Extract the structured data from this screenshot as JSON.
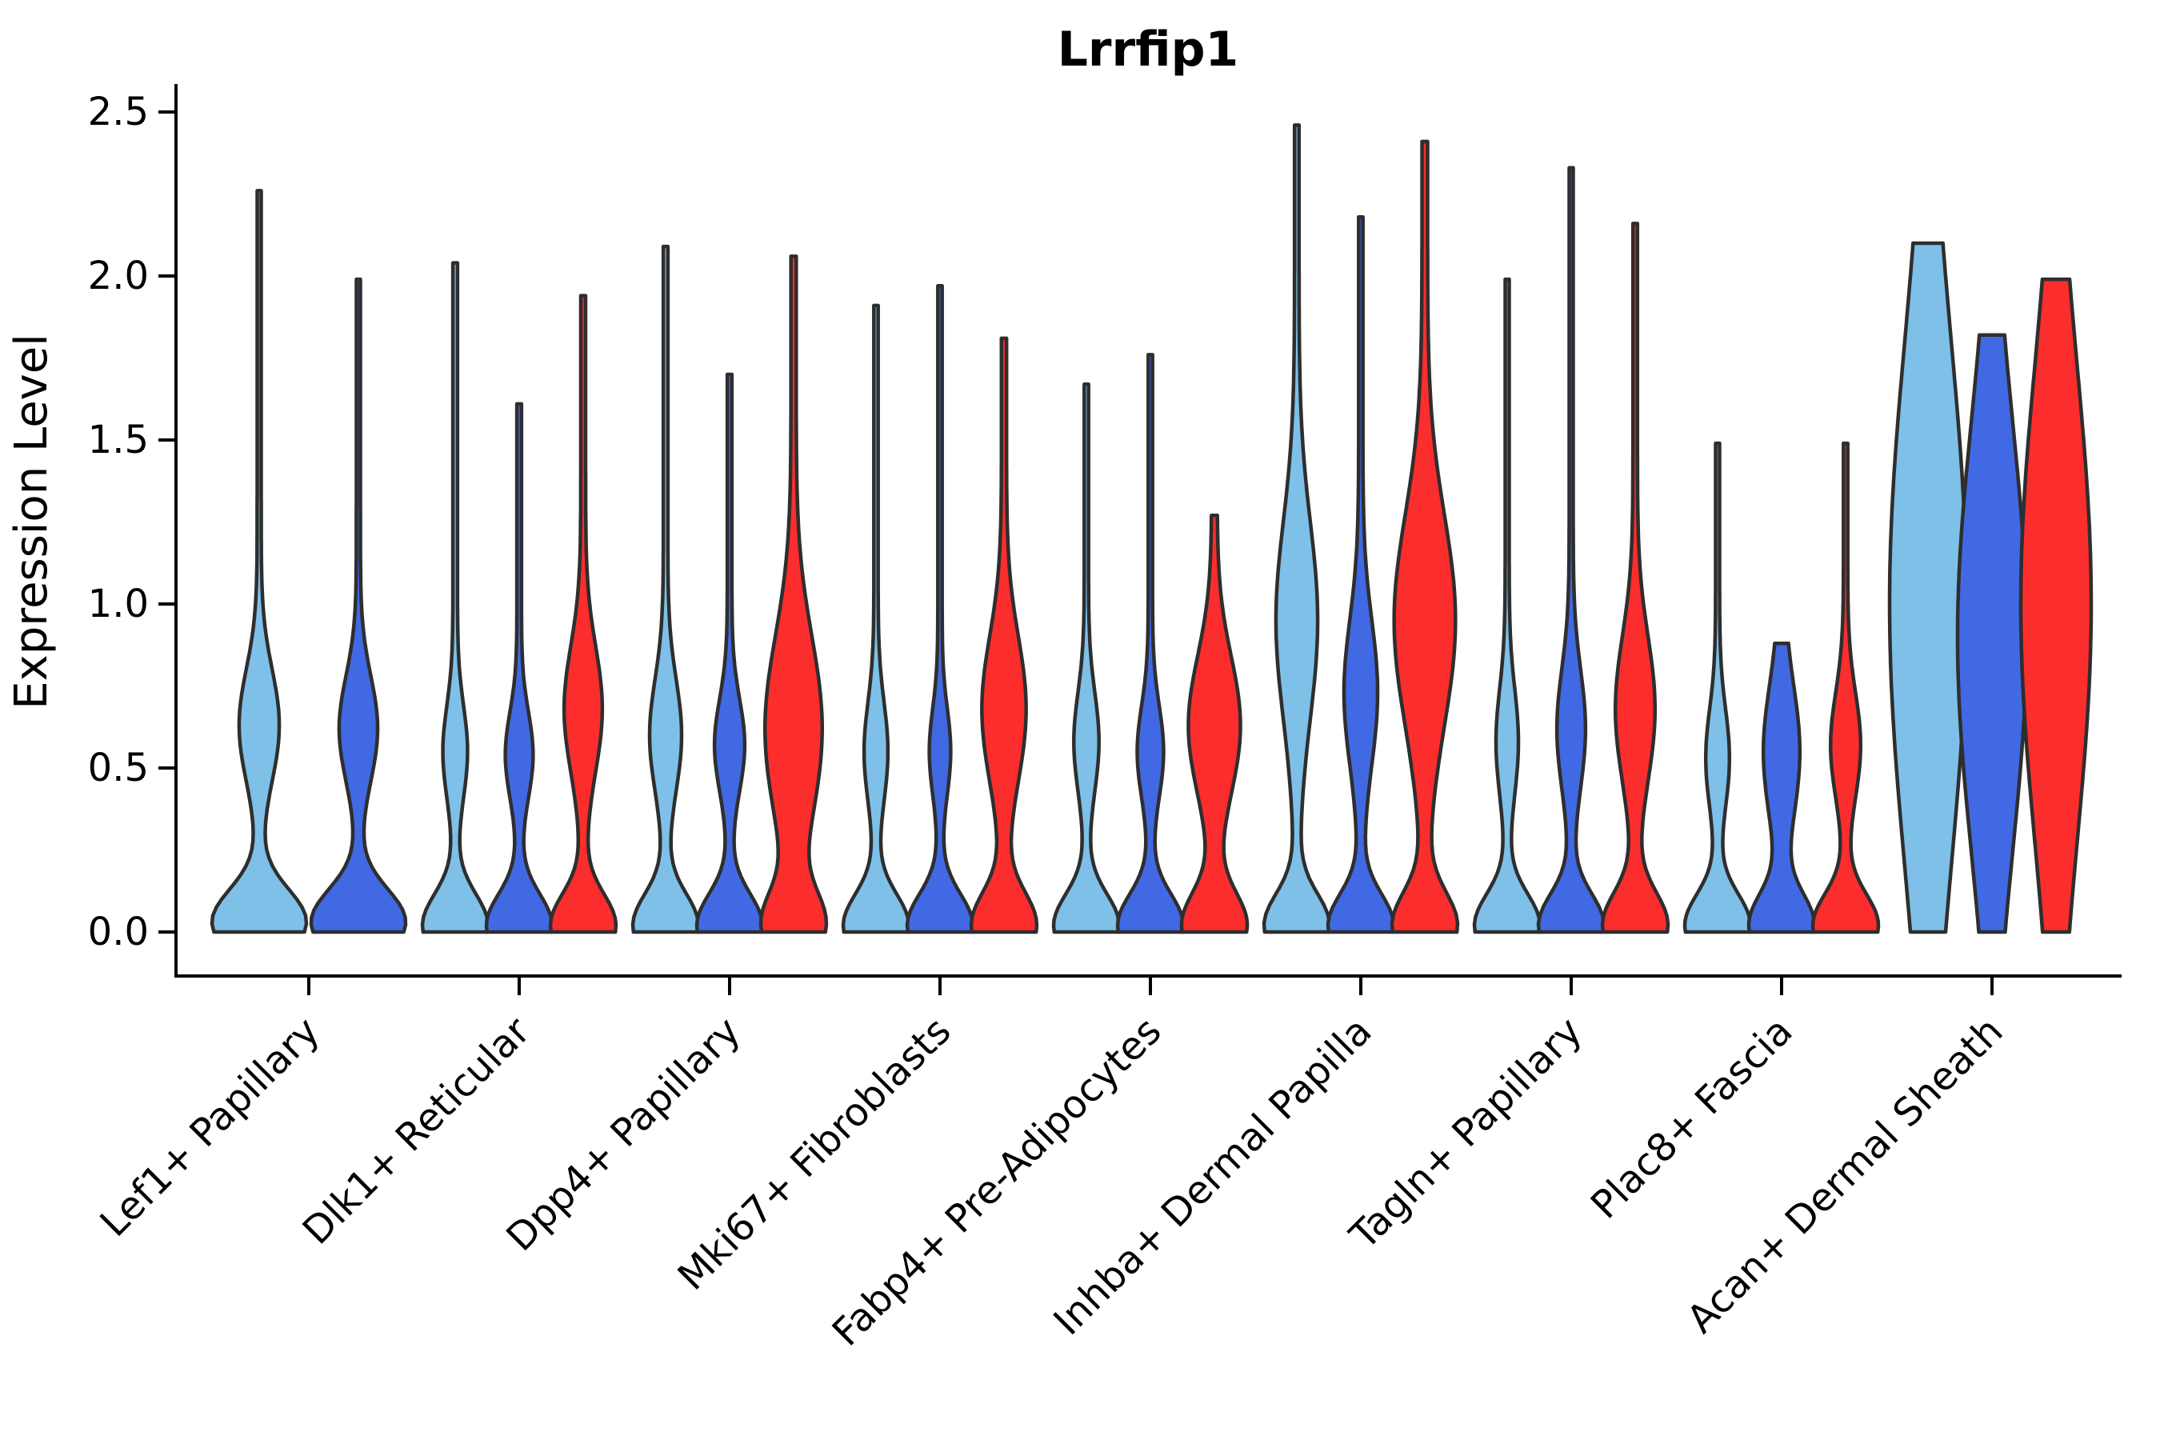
{
  "chart_data": {
    "type": "violin",
    "title": "Lrrfip1",
    "ylabel": "Expression Level",
    "xlabel": "",
    "ylim": [
      0,
      2.65
    ],
    "grid": false,
    "legend_position": "none",
    "axis_color": "#000000",
    "outline_color": "#2E2E2E",
    "hue_colors": {
      "lightblue": "#7EC0E8",
      "darkblue": "#4169E4",
      "red": "#FB2D2D"
    },
    "yticks": [
      {
        "value": 0.0,
        "label": "0.0"
      },
      {
        "value": 0.5,
        "label": "0.5"
      },
      {
        "value": 1.0,
        "label": "1.0"
      },
      {
        "value": 1.5,
        "label": "1.5"
      },
      {
        "value": 2.0,
        "label": "2.0"
      },
      {
        "value": 2.5,
        "label": "2.5"
      }
    ],
    "categories": [
      "Lef1+ Papillary",
      "Dlk1+ Reticular",
      "Dpp4+ Papillary",
      "Mki67+ Fibroblasts",
      "Fabp4+ Pre-Adipocytes",
      "Inhba+ Dermal Papilla",
      "Tagln+ Papillary",
      "Plac8+ Fascia",
      "Acan+ Dermal Sheath"
    ],
    "groups": [
      {
        "label": "Lef1+ Papillary",
        "violins": [
          {
            "hue": "lightblue",
            "max": 2.26,
            "hw": 59,
            "floor": 0.045,
            "comps": [
              [
                0.03,
                0.1,
                1.0
              ],
              [
                0.63,
                0.17,
                0.4
              ]
            ]
          },
          {
            "hue": "darkblue",
            "max": 1.99,
            "hw": 59,
            "floor": 0.045,
            "comps": [
              [
                0.03,
                0.1,
                1.0
              ],
              [
                0.62,
                0.16,
                0.38
              ]
            ]
          }
        ]
      },
      {
        "label": "Dlk1+ Reticular",
        "violins": [
          {
            "hue": "lightblue",
            "max": 2.04,
            "hw": 41,
            "floor": 0.075,
            "comps": [
              [
                0.02,
                0.095,
                1.0
              ],
              [
                0.55,
                0.14,
                0.33
              ]
            ]
          },
          {
            "hue": "darkblue",
            "max": 1.61,
            "hw": 41,
            "floor": 0.075,
            "comps": [
              [
                0.02,
                0.095,
                1.0
              ],
              [
                0.54,
                0.13,
                0.38
              ]
            ]
          },
          {
            "hue": "red",
            "max": 1.94,
            "hw": 41,
            "floor": 0.08,
            "comps": [
              [
                0.02,
                0.095,
                1.0
              ],
              [
                0.68,
                0.19,
                0.55
              ]
            ]
          }
        ]
      },
      {
        "label": "Dpp4+ Papillary",
        "violins": [
          {
            "hue": "lightblue",
            "max": 2.09,
            "hw": 41,
            "floor": 0.075,
            "comps": [
              [
                0.02,
                0.095,
                1.0
              ],
              [
                0.6,
                0.17,
                0.45
              ]
            ]
          },
          {
            "hue": "darkblue",
            "max": 1.7,
            "hw": 41,
            "floor": 0.075,
            "comps": [
              [
                0.02,
                0.095,
                1.0
              ],
              [
                0.57,
                0.14,
                0.42
              ]
            ]
          },
          {
            "hue": "red",
            "max": 2.06,
            "hw": 41,
            "floor": 0.085,
            "comps": [
              [
                0.02,
                0.1,
                0.9
              ],
              [
                0.62,
                0.28,
                0.85
              ]
            ]
          }
        ]
      },
      {
        "label": "Mki67+ Fibroblasts",
        "violins": [
          {
            "hue": "lightblue",
            "max": 1.91,
            "hw": 41,
            "floor": 0.07,
            "comps": [
              [
                0.02,
                0.095,
                1.0
              ],
              [
                0.55,
                0.15,
                0.32
              ]
            ]
          },
          {
            "hue": "darkblue",
            "max": 1.97,
            "hw": 41,
            "floor": 0.07,
            "comps": [
              [
                0.02,
                0.095,
                1.0
              ],
              [
                0.55,
                0.13,
                0.28
              ]
            ]
          },
          {
            "hue": "red",
            "max": 1.81,
            "hw": 41,
            "floor": 0.08,
            "comps": [
              [
                0.02,
                0.1,
                0.95
              ],
              [
                0.68,
                0.22,
                0.62
              ]
            ]
          }
        ]
      },
      {
        "label": "Fabp4+ Pre-Adipocytes",
        "violins": [
          {
            "hue": "lightblue",
            "max": 1.67,
            "hw": 41,
            "floor": 0.07,
            "comps": [
              [
                0.02,
                0.095,
                1.0
              ],
              [
                0.58,
                0.15,
                0.34
              ]
            ]
          },
          {
            "hue": "darkblue",
            "max": 1.76,
            "hw": 41,
            "floor": 0.07,
            "comps": [
              [
                0.02,
                0.095,
                1.0
              ],
              [
                0.55,
                0.14,
                0.36
              ]
            ]
          },
          {
            "hue": "red",
            "max": 1.27,
            "hw": 41,
            "floor": 0.085,
            "comps": [
              [
                0.02,
                0.1,
                0.92
              ],
              [
                0.63,
                0.21,
                0.72
              ]
            ]
          }
        ]
      },
      {
        "label": "Inhba+ Dermal Papilla",
        "violins": [
          {
            "hue": "lightblue",
            "max": 2.46,
            "hw": 41,
            "floor": 0.07,
            "comps": [
              [
                0.02,
                0.095,
                0.95
              ],
              [
                0.95,
                0.3,
                0.58
              ]
            ]
          },
          {
            "hue": "darkblue",
            "max": 2.18,
            "hw": 41,
            "floor": 0.07,
            "comps": [
              [
                0.02,
                0.095,
                1.0
              ],
              [
                0.73,
                0.22,
                0.48
              ]
            ]
          },
          {
            "hue": "red",
            "max": 2.41,
            "hw": 41,
            "floor": 0.08,
            "comps": [
              [
                0.02,
                0.1,
                0.85
              ],
              [
                0.95,
                0.32,
                0.8
              ]
            ]
          }
        ]
      },
      {
        "label": "Tagln+ Papillary",
        "violins": [
          {
            "hue": "lightblue",
            "max": 1.99,
            "hw": 41,
            "floor": 0.065,
            "comps": [
              [
                0.02,
                0.095,
                1.0
              ],
              [
                0.58,
                0.16,
                0.3
              ]
            ]
          },
          {
            "hue": "darkblue",
            "max": 2.33,
            "hw": 41,
            "floor": 0.065,
            "comps": [
              [
                0.02,
                0.095,
                1.0
              ],
              [
                0.62,
                0.18,
                0.4
              ]
            ]
          },
          {
            "hue": "red",
            "max": 2.16,
            "hw": 41,
            "floor": 0.07,
            "comps": [
              [
                0.02,
                0.1,
                0.95
              ],
              [
                0.68,
                0.22,
                0.55
              ]
            ]
          }
        ]
      },
      {
        "label": "Plac8+ Fascia",
        "violins": [
          {
            "hue": "lightblue",
            "max": 1.49,
            "hw": 41,
            "floor": 0.065,
            "comps": [
              [
                0.02,
                0.095,
                1.0
              ],
              [
                0.53,
                0.15,
                0.32
              ]
            ]
          },
          {
            "hue": "darkblue",
            "max": 0.88,
            "hw": 41,
            "floor": 0.1,
            "comps": [
              [
                0.02,
                0.095,
                1.0
              ],
              [
                0.55,
                0.2,
                0.52
              ]
            ]
          },
          {
            "hue": "red",
            "max": 1.49,
            "hw": 41,
            "floor": 0.07,
            "comps": [
              [
                0.02,
                0.095,
                1.0
              ],
              [
                0.57,
                0.16,
                0.42
              ]
            ]
          }
        ]
      },
      {
        "label": "Acan+ Dermal Sheath",
        "violins": [
          {
            "hue": "lightblue",
            "max": 2.1,
            "hw": 48,
            "floor": 0.0,
            "flat_top": true,
            "comps": [
              [
                1.0,
                0.8,
                1.0
              ]
            ]
          },
          {
            "hue": "darkblue",
            "max": 1.82,
            "hw": 43,
            "floor": 0.0,
            "flat_top": true,
            "comps": [
              [
                0.9,
                0.65,
                1.0
              ]
            ]
          },
          {
            "hue": "red",
            "max": 1.99,
            "hw": 44,
            "floor": 0.0,
            "flat_top": true,
            "comps": [
              [
                1.0,
                0.72,
                1.0
              ]
            ]
          }
        ]
      }
    ]
  }
}
